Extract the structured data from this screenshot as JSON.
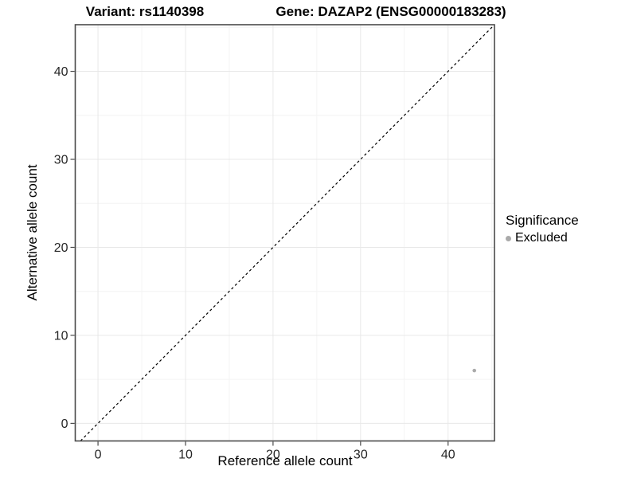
{
  "chart_data": {
    "type": "scatter",
    "title_left": "Variant: rs1140398",
    "title_right": "Gene: DAZAP2 (ENSG00000183283)",
    "xlabel": "Reference allele count",
    "ylabel": "Alternative allele count",
    "xlim": [
      -2.6,
      45.3
    ],
    "ylim": [
      -2.0,
      45.3
    ],
    "xticks": [
      0,
      10,
      20,
      30,
      40
    ],
    "yticks": [
      0,
      10,
      20,
      30,
      40
    ],
    "minor_xticks": [
      5,
      15,
      25,
      35,
      45
    ],
    "minor_yticks": [
      5,
      15,
      25,
      35,
      45
    ],
    "grid": true,
    "points": [
      {
        "x": 43,
        "y": 6,
        "significance": "Excluded"
      }
    ],
    "abline": {
      "slope": 1,
      "intercept": 0,
      "style": "dashed",
      "color": "#000000"
    },
    "legend": {
      "title": "Significance",
      "position": "right",
      "items": [
        {
          "label": "Excluded",
          "color": "#aaaaaa"
        }
      ]
    },
    "colors": {
      "excluded_point": "#aaaaaa",
      "panel_border": "#4a4a4a",
      "major_grid": "#e8e8e8",
      "minor_grid": "#f4f4f4",
      "tick_text": "#262626"
    }
  }
}
